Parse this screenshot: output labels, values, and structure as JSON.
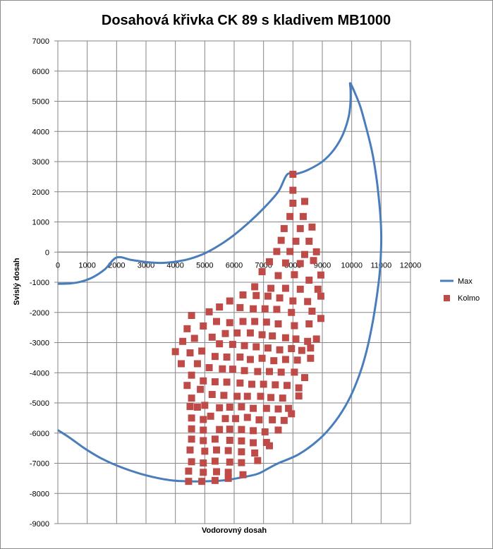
{
  "chart_data": {
    "type": "scatter",
    "title": "Dosahová křivka CK 89 s kladivem MB1000",
    "xlabel": "Vodorovný dosah",
    "ylabel": "Svislý dosah",
    "xlim": [
      0,
      12000
    ],
    "ylim": [
      -9000,
      7000
    ],
    "x_ticks": [
      0,
      1000,
      2000,
      3000,
      4000,
      5000,
      6000,
      7000,
      8000,
      9000,
      10000,
      11000,
      12000
    ],
    "y_ticks": [
      7000,
      6000,
      5000,
      4000,
      3000,
      2000,
      1000,
      0,
      -1000,
      -2000,
      -3000,
      -4000,
      -5000,
      -6000,
      -7000,
      -8000,
      -9000
    ],
    "grid": true,
    "legend_position": "right",
    "series": [
      {
        "name": "Max",
        "kind": "line",
        "color": "#4a7ebb",
        "points": [
          [
            0,
            -1050
          ],
          [
            400,
            -1040
          ],
          [
            800,
            -980
          ],
          [
            1200,
            -830
          ],
          [
            1600,
            -570
          ],
          [
            2000,
            -180
          ],
          [
            2500,
            -260
          ],
          [
            3000,
            -330
          ],
          [
            3500,
            -360
          ],
          [
            4000,
            -320
          ],
          [
            4500,
            -220
          ],
          [
            5000,
            -40
          ],
          [
            5500,
            230
          ],
          [
            6000,
            570
          ],
          [
            6500,
            980
          ],
          [
            7000,
            1450
          ],
          [
            7500,
            2000
          ],
          [
            7800,
            2570
          ],
          [
            8100,
            2590
          ],
          [
            8500,
            2720
          ],
          [
            9000,
            3000
          ],
          [
            9400,
            3400
          ],
          [
            9700,
            3900
          ],
          [
            9900,
            4500
          ],
          [
            9960,
            5000
          ],
          [
            9960,
            5400
          ],
          [
            9950,
            5600
          ],
          [
            10100,
            5300
          ],
          [
            10300,
            4800
          ],
          [
            10500,
            4100
          ],
          [
            10700,
            3300
          ],
          [
            10850,
            2400
          ],
          [
            10950,
            1500
          ],
          [
            11000,
            800
          ],
          [
            11000,
            100
          ],
          [
            10950,
            -700
          ],
          [
            10850,
            -1500
          ],
          [
            10700,
            -2400
          ],
          [
            10500,
            -3300
          ],
          [
            10250,
            -4100
          ],
          [
            9900,
            -4900
          ],
          [
            9450,
            -5600
          ],
          [
            8900,
            -6200
          ],
          [
            8200,
            -6700
          ],
          [
            7500,
            -7000
          ],
          [
            7200,
            -7150
          ],
          [
            6800,
            -7350
          ],
          [
            6200,
            -7480
          ],
          [
            5500,
            -7580
          ],
          [
            4500,
            -7600
          ],
          [
            3800,
            -7560
          ],
          [
            3000,
            -7400
          ],
          [
            2200,
            -7150
          ],
          [
            1500,
            -6850
          ],
          [
            900,
            -6500
          ],
          [
            400,
            -6150
          ],
          [
            0,
            -5900
          ]
        ]
      },
      {
        "name": "Kolmo",
        "kind": "scatter",
        "color": "#be4b48",
        "points": [
          [
            8000,
            2580
          ],
          [
            8000,
            2050
          ],
          [
            8400,
            1680
          ],
          [
            8000,
            1620
          ],
          [
            7900,
            1180
          ],
          [
            8350,
            1180
          ],
          [
            7700,
            780
          ],
          [
            8250,
            780
          ],
          [
            8650,
            830
          ],
          [
            7600,
            390
          ],
          [
            8100,
            360
          ],
          [
            8550,
            360
          ],
          [
            7450,
            20
          ],
          [
            7900,
            20
          ],
          [
            8400,
            -80
          ],
          [
            8800,
            10
          ],
          [
            7200,
            -320
          ],
          [
            7750,
            -360
          ],
          [
            8250,
            -380
          ],
          [
            8700,
            -280
          ],
          [
            6950,
            -650
          ],
          [
            7500,
            -780
          ],
          [
            8050,
            -750
          ],
          [
            8550,
            -930
          ],
          [
            8950,
            -760
          ],
          [
            6700,
            -1150
          ],
          [
            7250,
            -1200
          ],
          [
            7750,
            -1200
          ],
          [
            8250,
            -1230
          ],
          [
            8850,
            -1230
          ],
          [
            6300,
            -1420
          ],
          [
            6750,
            -1440
          ],
          [
            7150,
            -1460
          ],
          [
            7550,
            -1520
          ],
          [
            8000,
            -1620
          ],
          [
            8500,
            -1640
          ],
          [
            5850,
            -1620
          ],
          [
            6200,
            -1840
          ],
          [
            6650,
            -1880
          ],
          [
            7050,
            -1880
          ],
          [
            7450,
            -1900
          ],
          [
            7950,
            -2000
          ],
          [
            8650,
            -1960
          ],
          [
            8950,
            -1460
          ],
          [
            5500,
            -1820
          ],
          [
            5150,
            -1980
          ],
          [
            4550,
            -2100
          ],
          [
            5400,
            -2300
          ],
          [
            5850,
            -2340
          ],
          [
            6300,
            -2300
          ],
          [
            6700,
            -2300
          ],
          [
            7100,
            -2320
          ],
          [
            7500,
            -2380
          ],
          [
            8050,
            -2440
          ],
          [
            8550,
            -2380
          ],
          [
            8950,
            -2200
          ],
          [
            4950,
            -2450
          ],
          [
            4400,
            -2540
          ],
          [
            5700,
            -2700
          ],
          [
            6100,
            -2680
          ],
          [
            6550,
            -2680
          ],
          [
            6950,
            -2740
          ],
          [
            7300,
            -2780
          ],
          [
            7750,
            -2840
          ],
          [
            8100,
            -2880
          ],
          [
            8500,
            -2960
          ],
          [
            8800,
            -2880
          ],
          [
            5250,
            -2820
          ],
          [
            4650,
            -2860
          ],
          [
            4250,
            -2960
          ],
          [
            5500,
            -3040
          ],
          [
            5950,
            -3060
          ],
          [
            6350,
            -3100
          ],
          [
            6750,
            -3140
          ],
          [
            7150,
            -3180
          ],
          [
            7550,
            -3240
          ],
          [
            7950,
            -3200
          ],
          [
            8300,
            -3260
          ],
          [
            8600,
            -3180
          ],
          [
            4900,
            -3280
          ],
          [
            4500,
            -3340
          ],
          [
            4000,
            -3300
          ],
          [
            5350,
            -3460
          ],
          [
            5750,
            -3480
          ],
          [
            6200,
            -3480
          ],
          [
            6550,
            -3560
          ],
          [
            6950,
            -3520
          ],
          [
            7350,
            -3600
          ],
          [
            7750,
            -3560
          ],
          [
            8150,
            -3580
          ],
          [
            8600,
            -3520
          ],
          [
            4200,
            -3700
          ],
          [
            4750,
            -3700
          ],
          [
            5150,
            -3830
          ],
          [
            5600,
            -3870
          ],
          [
            5950,
            -3880
          ],
          [
            6350,
            -3930
          ],
          [
            6800,
            -3960
          ],
          [
            7200,
            -3960
          ],
          [
            7600,
            -3980
          ],
          [
            8050,
            -3980
          ],
          [
            8400,
            -4160
          ],
          [
            4550,
            -4080
          ],
          [
            4950,
            -4270
          ],
          [
            5350,
            -4300
          ],
          [
            5750,
            -4310
          ],
          [
            6200,
            -4340
          ],
          [
            6600,
            -4380
          ],
          [
            7000,
            -4380
          ],
          [
            7400,
            -4400
          ],
          [
            7800,
            -4420
          ],
          [
            8200,
            -4500
          ],
          [
            4400,
            -4420
          ],
          [
            4850,
            -4550
          ],
          [
            5250,
            -4720
          ],
          [
            5650,
            -4750
          ],
          [
            6100,
            -4780
          ],
          [
            6450,
            -4780
          ],
          [
            6900,
            -4780
          ],
          [
            7250,
            -4820
          ],
          [
            7650,
            -4840
          ],
          [
            8200,
            -4770
          ],
          [
            4550,
            -4840
          ],
          [
            5000,
            -5080
          ],
          [
            5500,
            -5160
          ],
          [
            5850,
            -5140
          ],
          [
            6250,
            -5130
          ],
          [
            6650,
            -5180
          ],
          [
            7100,
            -5180
          ],
          [
            7500,
            -5200
          ],
          [
            7850,
            -5180
          ],
          [
            4500,
            -5120
          ],
          [
            4750,
            -5140
          ],
          [
            5200,
            -5440
          ],
          [
            5700,
            -5520
          ],
          [
            6050,
            -5520
          ],
          [
            6450,
            -5480
          ],
          [
            6850,
            -5560
          ],
          [
            7300,
            -5560
          ],
          [
            7700,
            -5580
          ],
          [
            7950,
            -5360
          ],
          [
            4550,
            -5500
          ],
          [
            4950,
            -5550
          ],
          [
            5500,
            -5880
          ],
          [
            5850,
            -5870
          ],
          [
            6250,
            -5880
          ],
          [
            6650,
            -5920
          ],
          [
            7050,
            -5960
          ],
          [
            7500,
            -5900
          ],
          [
            4550,
            -5860
          ],
          [
            4950,
            -5900
          ],
          [
            5350,
            -6200
          ],
          [
            5850,
            -6240
          ],
          [
            6250,
            -6260
          ],
          [
            6650,
            -6320
          ],
          [
            7100,
            -6310
          ],
          [
            4550,
            -6200
          ],
          [
            4950,
            -6250
          ],
          [
            5400,
            -6560
          ],
          [
            5800,
            -6580
          ],
          [
            6250,
            -6620
          ],
          [
            6700,
            -6660
          ],
          [
            7200,
            -6420
          ],
          [
            4500,
            -6560
          ],
          [
            5000,
            -6600
          ],
          [
            5350,
            -6930
          ],
          [
            5850,
            -6960
          ],
          [
            6250,
            -6980
          ],
          [
            6800,
            -6910
          ],
          [
            4550,
            -6950
          ],
          [
            4950,
            -6990
          ],
          [
            5400,
            -7280
          ],
          [
            5800,
            -7300
          ],
          [
            6300,
            -7380
          ],
          [
            4450,
            -7260
          ],
          [
            4950,
            -7300
          ],
          [
            5350,
            -7570
          ],
          [
            5800,
            -7500
          ],
          [
            4450,
            -7600
          ],
          [
            4900,
            -7600
          ]
        ]
      }
    ]
  }
}
